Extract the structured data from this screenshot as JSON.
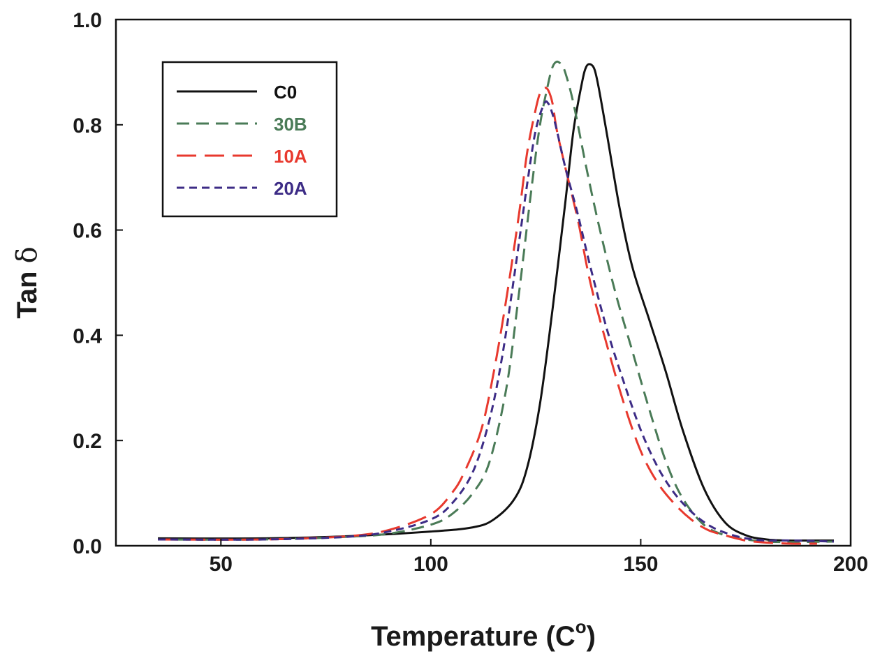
{
  "chart_data": {
    "type": "line",
    "xlabel": "Temperature (C",
    "xlabel_superscript": "o",
    "xlabel_close": ")",
    "ylabel_prefix": "Tan ",
    "ylabel_symbol": "δ",
    "xlim": [
      25,
      200
    ],
    "ylim": [
      0,
      1.0
    ],
    "xticks": [
      50,
      100,
      150,
      200
    ],
    "yticks": [
      0.0,
      0.2,
      0.4,
      0.6,
      0.8,
      1.0
    ],
    "xtick_labels": [
      "50",
      "100",
      "150",
      "200"
    ],
    "ytick_labels": [
      "0.0",
      "0.2",
      "0.4",
      "0.6",
      "0.8",
      "1.0"
    ],
    "grid": false,
    "legend_position": "top-left",
    "series": [
      {
        "name": "C0",
        "color": "#111111",
        "dash": "solid",
        "x": [
          35,
          60,
          80,
          100,
          110,
          115,
          120,
          123,
          126,
          129,
          132,
          134,
          136,
          137,
          138,
          139,
          140,
          142,
          145,
          148,
          152,
          156,
          160,
          165,
          170,
          175,
          180,
          185,
          190,
          196
        ],
        "y": [
          0.014,
          0.014,
          0.018,
          0.027,
          0.035,
          0.05,
          0.09,
          0.15,
          0.27,
          0.45,
          0.65,
          0.79,
          0.88,
          0.91,
          0.915,
          0.905,
          0.87,
          0.78,
          0.64,
          0.53,
          0.43,
          0.33,
          0.22,
          0.11,
          0.045,
          0.02,
          0.012,
          0.01,
          0.01,
          0.01
        ]
      },
      {
        "name": "30B",
        "color": "#4a7b57",
        "dash": "medium",
        "x": [
          35,
          60,
          80,
          90,
          100,
          105,
          110,
          114,
          118,
          121,
          124,
          126,
          128,
          129,
          130,
          131,
          132,
          134,
          137,
          140,
          144,
          148,
          152,
          156,
          160,
          165,
          170,
          175,
          180,
          186,
          196
        ],
        "y": [
          0.012,
          0.012,
          0.017,
          0.023,
          0.04,
          0.06,
          0.1,
          0.16,
          0.3,
          0.48,
          0.68,
          0.8,
          0.88,
          0.91,
          0.92,
          0.915,
          0.9,
          0.84,
          0.72,
          0.61,
          0.48,
          0.37,
          0.26,
          0.16,
          0.09,
          0.04,
          0.02,
          0.012,
          0.008,
          0.007,
          0.008
        ]
      },
      {
        "name": "10A",
        "color": "#e8392e",
        "dash": "long",
        "x": [
          35,
          60,
          80,
          90,
          100,
          105,
          108,
          112,
          115,
          118,
          121,
          123,
          125,
          126,
          127,
          128,
          129,
          130,
          132,
          135,
          138,
          142,
          146,
          150,
          154,
          158,
          162,
          166,
          170,
          175,
          180,
          186,
          192
        ],
        "y": [
          0.012,
          0.012,
          0.018,
          0.03,
          0.06,
          0.1,
          0.14,
          0.22,
          0.33,
          0.47,
          0.63,
          0.75,
          0.83,
          0.86,
          0.87,
          0.865,
          0.84,
          0.79,
          0.72,
          0.62,
          0.5,
          0.38,
          0.27,
          0.18,
          0.12,
          0.08,
          0.05,
          0.03,
          0.02,
          0.01,
          0.006,
          0.004,
          0.004
        ]
      },
      {
        "name": "20A",
        "color": "#3d2c86",
        "dash": "short",
        "x": [
          35,
          60,
          80,
          90,
          100,
          105,
          110,
          114,
          117,
          120,
          123,
          125,
          127,
          128,
          129,
          130,
          132,
          135,
          138,
          142,
          146,
          150,
          154,
          158,
          162,
          166,
          170,
          175,
          180,
          186,
          196
        ],
        "y": [
          0.012,
          0.012,
          0.017,
          0.027,
          0.05,
          0.08,
          0.14,
          0.24,
          0.36,
          0.52,
          0.69,
          0.79,
          0.84,
          0.84,
          0.82,
          0.79,
          0.72,
          0.63,
          0.53,
          0.41,
          0.31,
          0.22,
          0.15,
          0.1,
          0.065,
          0.04,
          0.025,
          0.014,
          0.01,
          0.01,
          0.008
        ]
      }
    ]
  }
}
